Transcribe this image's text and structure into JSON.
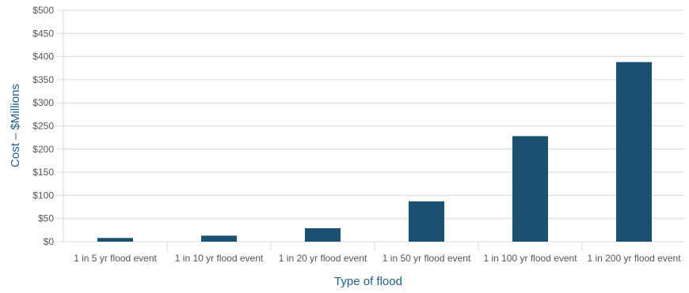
{
  "chart_data": {
    "type": "bar",
    "title": "",
    "xlabel": "Type of flood",
    "ylabel": "Cost – $Millions",
    "categories": [
      "1 in 5 yr flood event",
      "1 in 10 yr flood event",
      "1 in 20 yr flood event",
      "1 in 50 yr flood event",
      "1 in 100 yr flood event",
      "1 in 200 yr flood event"
    ],
    "values": [
      8,
      13,
      29,
      87,
      228,
      388
    ],
    "ylim": [
      0,
      500
    ],
    "yticks": [
      "$0",
      "$50",
      "$100",
      "$150",
      "$200",
      "$250",
      "$300",
      "$350",
      "$400",
      "$450",
      "$500"
    ],
    "grid": true,
    "colors": {
      "bar": "#1a5071",
      "grid": "#d9d9d9",
      "axis_title": "#1f5f86",
      "tick": "#555555"
    }
  }
}
